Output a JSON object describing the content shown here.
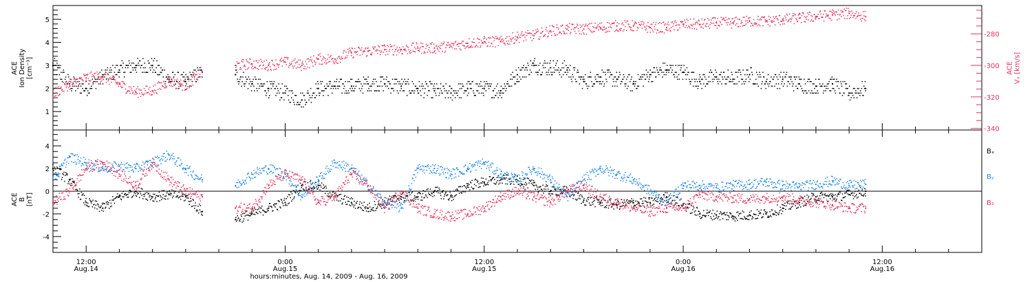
{
  "colors": {
    "black": "#000000",
    "pink": "#e0305a",
    "blue": "#1f86e0"
  },
  "xaxis": {
    "title": "hours:minutes, Aug. 14, 2009 - Aug. 16, 2009",
    "ticks": [
      {
        "t": 12,
        "time": "12:00",
        "date": "Aug.14"
      },
      {
        "t": 24,
        "time": "0:00",
        "date": "Aug.15"
      },
      {
        "t": 36,
        "time": "12:00",
        "date": "Aug.15"
      },
      {
        "t": 48,
        "time": "0:00",
        "date": "Aug.16"
      },
      {
        "t": 60,
        "time": "12:00",
        "date": "Aug.16"
      }
    ]
  },
  "chart_data": [
    {
      "type": "scatter",
      "panel": "top",
      "xlim_hours": [
        10,
        66
      ],
      "ylabel_left": [
        "ACE",
        "Ion Density",
        "[cm⁻³]"
      ],
      "ylabel_right": [
        "ACE",
        "Vₓ [km/s]"
      ],
      "ylim_left": [
        0.2,
        5.6
      ],
      "yticks_left": [
        1,
        2,
        3,
        4,
        5
      ],
      "ylim_right": [
        -341,
        -262
      ],
      "yticks_right": [
        -340,
        -320,
        -300,
        -280
      ],
      "series": [
        {
          "key": "density",
          "color": "#000000",
          "axis": "left",
          "x": [
            10,
            11,
            12,
            13,
            14,
            15,
            16,
            17,
            18,
            19,
            20,
            21,
            22,
            23,
            24,
            25,
            26,
            27,
            28,
            29,
            30,
            31,
            32,
            33,
            34,
            35,
            36,
            37,
            38,
            39,
            40,
            41,
            42,
            43,
            44,
            45,
            46,
            47,
            48,
            49,
            50,
            51,
            52,
            53,
            54,
            55,
            56,
            57,
            58,
            59
          ],
          "y": [
            3.0,
            2.2,
            2.0,
            2.5,
            2.8,
            3.0,
            3.0,
            2.4,
            2.3,
            2.7,
            null,
            2.6,
            2.2,
            2.0,
            1.8,
            1.5,
            2.0,
            2.1,
            2.1,
            2.2,
            2.2,
            2.1,
            2.0,
            1.9,
            1.8,
            2.0,
            2.0,
            1.9,
            2.6,
            3.0,
            2.9,
            2.8,
            2.3,
            2.5,
            2.4,
            2.2,
            2.6,
            2.8,
            2.7,
            2.3,
            2.5,
            2.4,
            2.6,
            2.3,
            2.4,
            2.2,
            2.1,
            2.2,
            1.8,
            2.0
          ]
        },
        {
          "key": "vx",
          "color": "#e0305a",
          "axis": "right",
          "x": [
            10,
            11,
            12,
            13,
            14,
            15,
            16,
            17,
            18,
            19,
            20,
            21,
            22,
            23,
            24,
            25,
            26,
            27,
            28,
            29,
            30,
            31,
            32,
            33,
            34,
            35,
            36,
            37,
            38,
            39,
            40,
            41,
            42,
            43,
            44,
            45,
            46,
            47,
            48,
            49,
            50,
            51,
            52,
            53,
            54,
            55,
            56,
            57,
            58,
            59
          ],
          "y": [
            -318,
            -312,
            -308,
            -307,
            -312,
            -317,
            -316,
            -310,
            -313,
            -304,
            null,
            -300,
            -299,
            -300,
            -298,
            -300,
            -296,
            -296,
            -292,
            -291,
            -290,
            -290,
            -289,
            -289,
            -288,
            -286,
            -285,
            -285,
            -282,
            -281,
            -278,
            -277,
            -277,
            -276,
            -275,
            -275,
            -276,
            -276,
            -274,
            -274,
            -273,
            -273,
            -272,
            -272,
            -271,
            -270,
            -269,
            -268,
            -267,
            -269
          ]
        }
      ]
    },
    {
      "type": "scatter",
      "panel": "bottom",
      "xlim_hours": [
        10,
        66
      ],
      "ylabel_left": [
        "ACE",
        "B",
        "[nT]"
      ],
      "ylim": [
        -5.4,
        5.4
      ],
      "yticks": [
        -4,
        -2,
        0,
        2,
        4
      ],
      "series": [
        {
          "key": "bx",
          "name": "Bₓ",
          "color": "#000000",
          "x": [
            10,
            11,
            12,
            13,
            14,
            15,
            16,
            17,
            18,
            19,
            20,
            21,
            22,
            23,
            24,
            25,
            26,
            27,
            28,
            29,
            30,
            31,
            32,
            33,
            34,
            35,
            36,
            37,
            38,
            39,
            40,
            41,
            42,
            43,
            44,
            45,
            46,
            47,
            48,
            49,
            50,
            51,
            52,
            53,
            54,
            55,
            56,
            57,
            58,
            59
          ],
          "y": [
            2.0,
            1.0,
            -1.0,
            -1.5,
            -0.5,
            0.0,
            -0.5,
            -0.3,
            -0.5,
            -1.8,
            null,
            -2.5,
            -2.0,
            -1.5,
            -1.0,
            0.5,
            0.5,
            -0.5,
            -1.0,
            -1.5,
            -1.0,
            -0.5,
            -0.5,
            0.0,
            -0.5,
            0.5,
            0.8,
            1.0,
            1.0,
            0.5,
            0.0,
            0.0,
            -0.8,
            -1.0,
            -1.2,
            -1.0,
            -1.0,
            -0.5,
            -1.2,
            -2.0,
            -2.1,
            -2.2,
            -2.1,
            -2.0,
            -1.5,
            -1.0,
            -0.5,
            -0.5,
            -0.3,
            0.0
          ]
        },
        {
          "key": "by",
          "name": "Bᵧ",
          "color": "#1f86e0",
          "x": [
            10,
            11,
            12,
            13,
            14,
            15,
            16,
            17,
            18,
            19,
            20,
            21,
            22,
            23,
            24,
            25,
            26,
            27,
            28,
            29,
            30,
            31,
            32,
            33,
            34,
            35,
            36,
            37,
            38,
            39,
            40,
            41,
            42,
            43,
            44,
            45,
            46,
            47,
            48,
            49,
            50,
            51,
            52,
            53,
            54,
            55,
            56,
            57,
            58,
            59
          ],
          "y": [
            1.0,
            3.0,
            2.5,
            2.0,
            2.2,
            2.0,
            2.5,
            3.2,
            2.0,
            1.0,
            null,
            0.5,
            1.5,
            2.0,
            1.5,
            -0.5,
            1.0,
            2.5,
            2.0,
            0.5,
            -1.0,
            -1.5,
            2.0,
            2.0,
            1.5,
            2.0,
            2.5,
            1.5,
            1.0,
            2.0,
            1.0,
            -0.5,
            1.0,
            2.0,
            1.5,
            1.0,
            0.0,
            -1.0,
            0.5,
            0.5,
            0.3,
            0.5,
            0.6,
            0.8,
            0.5,
            0.4,
            0.6,
            0.9,
            0.5,
            0.6
          ]
        },
        {
          "key": "bz",
          "name": "B₂",
          "color": "#e0305a",
          "x": [
            10,
            11,
            12,
            13,
            14,
            15,
            16,
            17,
            18,
            19,
            20,
            21,
            22,
            23,
            24,
            25,
            26,
            27,
            28,
            29,
            30,
            31,
            32,
            33,
            34,
            35,
            36,
            37,
            38,
            39,
            40,
            41,
            42,
            43,
            44,
            45,
            46,
            47,
            48,
            49,
            50,
            51,
            52,
            53,
            54,
            55,
            56,
            57,
            58,
            59
          ],
          "y": [
            -1.0,
            0.0,
            2.0,
            2.5,
            1.5,
            0.5,
            2.5,
            1.0,
            0.0,
            -0.5,
            null,
            -1.5,
            -1.5,
            0.5,
            1.5,
            1.0,
            -1.0,
            -0.5,
            1.5,
            0.5,
            -1.5,
            0.0,
            -1.5,
            -2.0,
            -2.2,
            -2.0,
            -1.5,
            -0.5,
            0.0,
            -0.5,
            -1.0,
            0.0,
            0.5,
            -0.5,
            -1.0,
            -1.5,
            -1.8,
            -1.5,
            -1.5,
            -0.3,
            -0.5,
            -0.6,
            -0.7,
            -0.6,
            -0.5,
            -0.8,
            -1.0,
            -1.2,
            -1.5,
            -1.5
          ]
        }
      ]
    }
  ]
}
